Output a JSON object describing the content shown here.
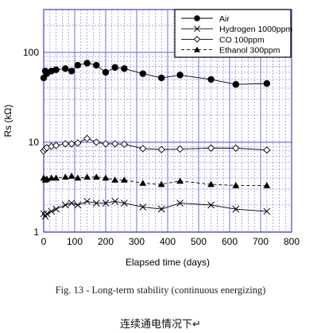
{
  "chart_data": {
    "type": "scatter",
    "xlabel": "Elapsed time (days)",
    "ylabel": "Rs (kΩ)",
    "xlim": [
      0,
      800
    ],
    "ylim": [
      1,
      300
    ],
    "y_scale": "log",
    "grid": true,
    "x_ticks": [
      0,
      100,
      200,
      300,
      400,
      500,
      600,
      700,
      800
    ],
    "y_ticks": [
      {
        "value": 1,
        "label": "1"
      },
      {
        "value": 10,
        "label": "10"
      },
      {
        "value": 100,
        "label": "100"
      }
    ],
    "legend_position": "top-right",
    "series": [
      {
        "name": "Air",
        "marker": "filled-circle",
        "line": "solid",
        "x": [
          0,
          5,
          10,
          25,
          40,
          70,
          90,
          110,
          140,
          170,
          200,
          230,
          260,
          320,
          380,
          440,
          540,
          620,
          720
        ],
        "y": [
          52,
          62,
          58,
          62,
          64,
          66,
          62,
          72,
          76,
          72,
          60,
          68,
          66,
          58,
          52,
          56,
          50,
          44,
          45
        ]
      },
      {
        "name": "Hydrogen 1000ppm",
        "marker": "x",
        "line": "solid",
        "x": [
          0,
          5,
          10,
          25,
          40,
          70,
          90,
          110,
          140,
          170,
          200,
          230,
          260,
          320,
          380,
          440,
          540,
          620,
          720
        ],
        "y": [
          1.6,
          1.5,
          1.6,
          1.7,
          1.8,
          2.0,
          2.1,
          2.0,
          2.2,
          2.1,
          2.1,
          2.2,
          2.1,
          1.9,
          1.8,
          2.1,
          2.0,
          1.8,
          1.7
        ]
      },
      {
        "name": "CO 100ppm",
        "marker": "open-diamond",
        "line": "solid",
        "x": [
          0,
          5,
          10,
          25,
          40,
          70,
          90,
          110,
          140,
          170,
          200,
          230,
          260,
          320,
          380,
          440,
          540,
          620,
          720
        ],
        "y": [
          8.0,
          8.4,
          8.7,
          9.0,
          9.2,
          9.6,
          9.6,
          9.8,
          11.0,
          10.0,
          9.6,
          9.6,
          9.5,
          8.5,
          8.3,
          8.4,
          8.6,
          8.6,
          8.2
        ]
      },
      {
        "name": "Ethanol 300ppm",
        "marker": "filled-triangle",
        "line": "dashed",
        "x": [
          0,
          5,
          10,
          25,
          40,
          70,
          90,
          110,
          140,
          170,
          200,
          230,
          260,
          320,
          380,
          440,
          540,
          620,
          720
        ],
        "y": [
          4.0,
          3.8,
          3.9,
          4.0,
          4.0,
          4.1,
          4.2,
          4.0,
          4.1,
          4.1,
          4.0,
          3.8,
          3.8,
          3.5,
          3.4,
          3.7,
          3.4,
          3.3,
          3.3
        ]
      }
    ]
  },
  "caption": "Fig. 13 - Long-term stability (continuous energizing)",
  "caption_cn": "连续通电情况下↵",
  "colors": {
    "grid": "#6f6fe0",
    "frame": "#3f3fd0",
    "ink": "#000000"
  }
}
